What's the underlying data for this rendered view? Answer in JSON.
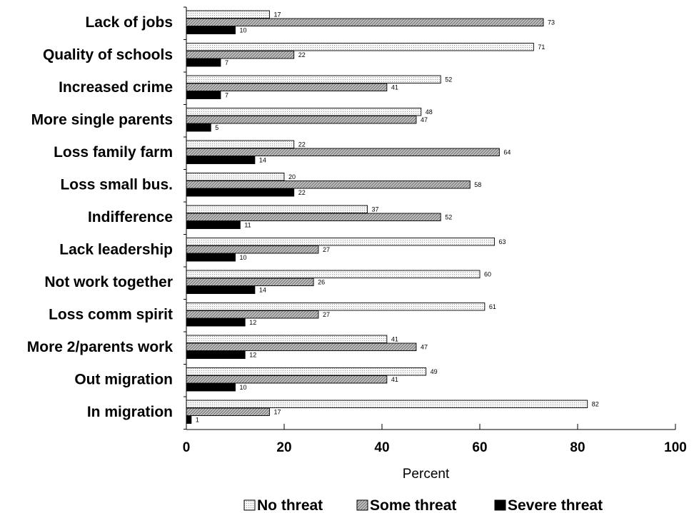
{
  "chart_data": {
    "type": "bar",
    "orientation": "horizontal",
    "categories": [
      "Lack of jobs",
      "Quality of schools",
      "Increased crime",
      "More single parents",
      "Loss family farm",
      "Loss small bus.",
      "Indifference",
      "Lack leadership",
      "Not work together",
      "Loss comm spirit",
      "More 2/parents work",
      "Out migration",
      "In migration"
    ],
    "series": [
      {
        "name": "No threat",
        "values": [
          17,
          71,
          52,
          48,
          22,
          20,
          37,
          63,
          60,
          61,
          41,
          49,
          82
        ],
        "pattern": "light-dots"
      },
      {
        "name": "Some threat",
        "values": [
          73,
          22,
          41,
          47,
          64,
          58,
          52,
          27,
          26,
          27,
          47,
          41,
          17
        ],
        "pattern": "gray-hatch"
      },
      {
        "name": "Severe threat",
        "values": [
          10,
          7,
          7,
          5,
          14,
          22,
          11,
          10,
          14,
          12,
          12,
          10,
          1
        ],
        "pattern": "solid-black"
      }
    ],
    "xlabel": "Percent",
    "xlim": [
      0,
      100
    ],
    "xticks": [
      0,
      20,
      40,
      60,
      80,
      100
    ],
    "grid": false,
    "legend_position": "bottom",
    "colors": {
      "no_threat": "#f4f4f4",
      "some_threat": "#b8b8b8",
      "severe_threat": "#000000"
    }
  }
}
